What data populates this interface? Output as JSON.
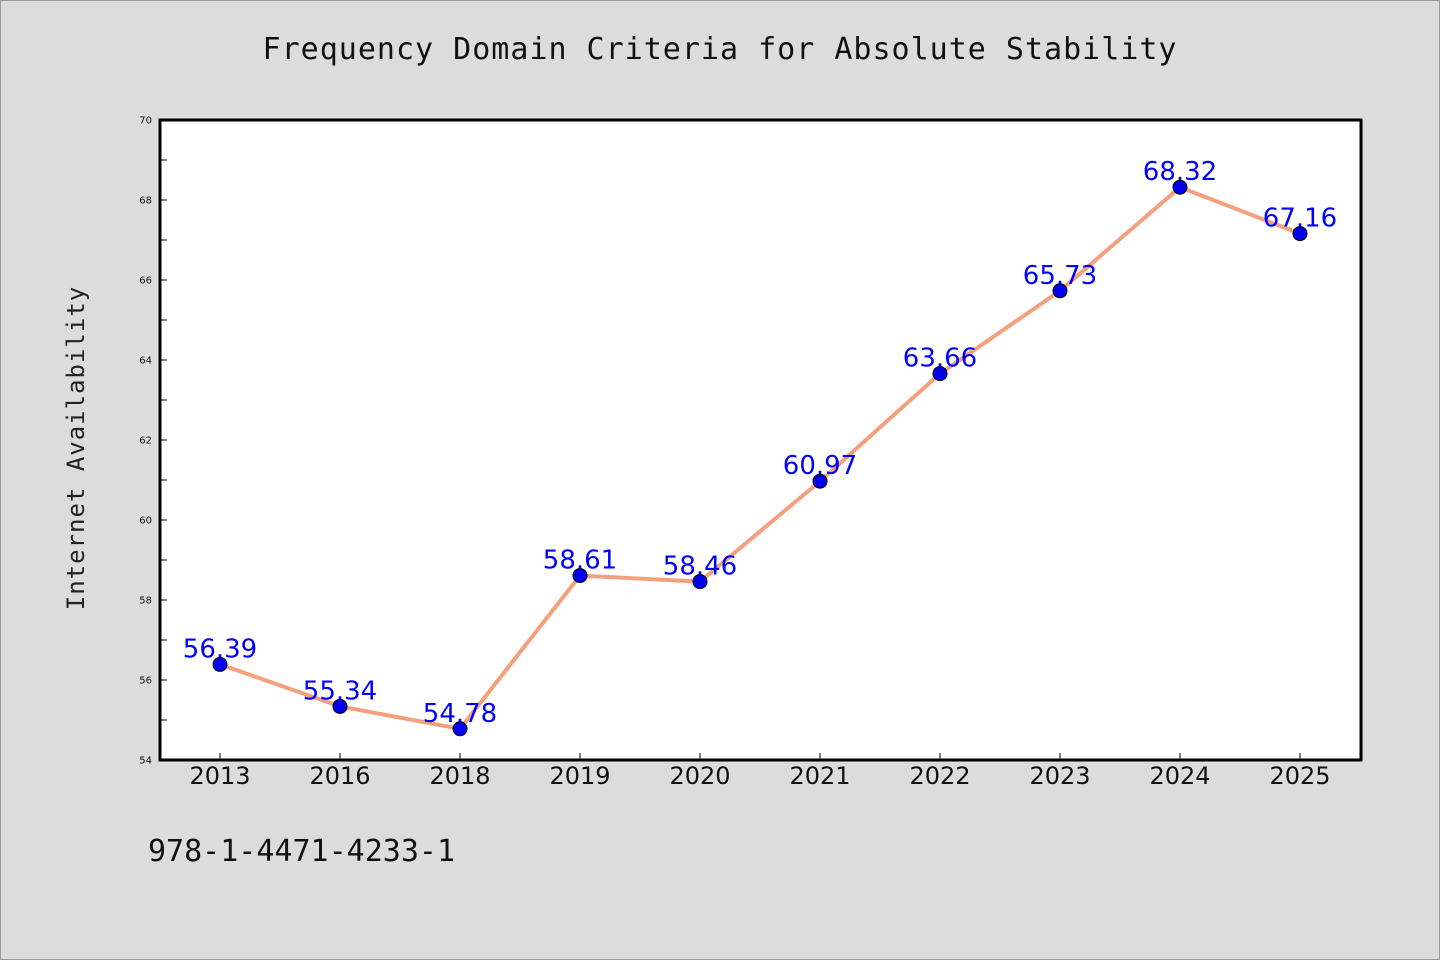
{
  "chart_data": {
    "type": "line",
    "title": "Frequency Domain Criteria for Absolute Stability",
    "xlabel": "",
    "ylabel": "Internet Availability",
    "categories": [
      "2013",
      "2016",
      "2018",
      "2019",
      "2020",
      "2021",
      "2022",
      "2023",
      "2024",
      "2025"
    ],
    "series": [
      {
        "values": [
          56.39,
          55.34,
          54.78,
          58.61,
          58.46,
          60.97,
          63.66,
          65.73,
          68.32,
          67.16
        ],
        "data_labels": [
          "56.39",
          "55.34",
          "54.78",
          "58.61",
          "58.46",
          "60.97",
          "63.66",
          "65.73",
          "68.32",
          "67.16"
        ],
        "line_color": "#f4a07e",
        "marker_color": "#0000ee",
        "label_color": "#0000ff"
      }
    ],
    "ylim": [
      54,
      70
    ],
    "yticks": [
      54,
      56,
      58,
      60,
      62,
      64,
      66,
      68,
      70
    ],
    "ytick_labels": [
      "54",
      "56",
      "58",
      "60",
      "62",
      "64",
      "66",
      "68",
      "70"
    ],
    "grid": false,
    "legend": "none"
  },
  "footnote": "978-1-4471-4233-1",
  "colors": {
    "background": "#dcdcdc",
    "plot_area": "#ffffff"
  }
}
